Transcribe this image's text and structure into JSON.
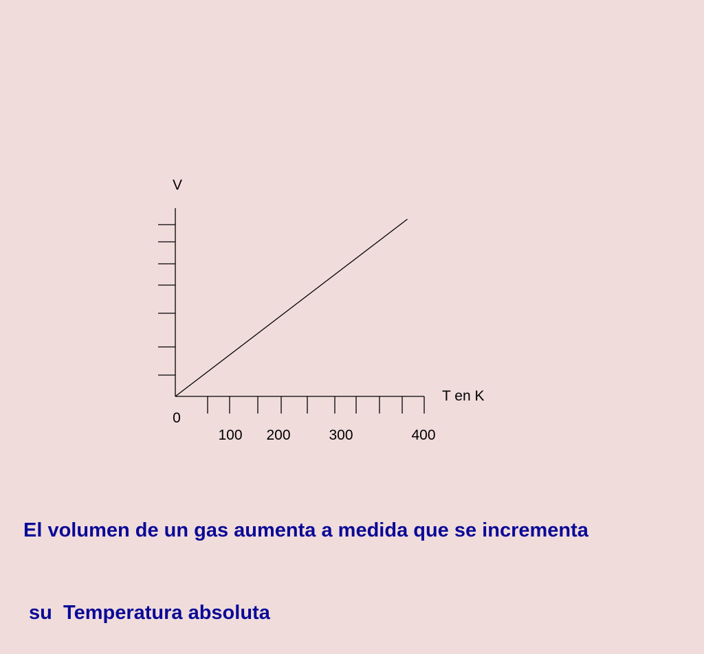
{
  "chart_data": {
    "type": "line",
    "ylabel": "V",
    "xlabel": "T en K",
    "origin_label": "0",
    "x_tick_labels": [
      "100",
      "200",
      "300",
      "400"
    ],
    "x_tick_count": 10,
    "y_tick_count": 7,
    "series": [
      {
        "x": [
          0,
          373
        ],
        "y": [
          0,
          8.5
        ]
      }
    ],
    "xlim": [
      0,
      400
    ],
    "ylim": [
      0,
      8.5
    ],
    "grid": false,
    "line_color": "#000000"
  },
  "caption": {
    "line1": "El volumen de un gas aumenta a medida que se incrementa",
    "line2": " su  Temperatura absoluta"
  },
  "colors": {
    "background": "#f1dcdc",
    "caption": "#0a0a96",
    "axis": "#000000"
  }
}
